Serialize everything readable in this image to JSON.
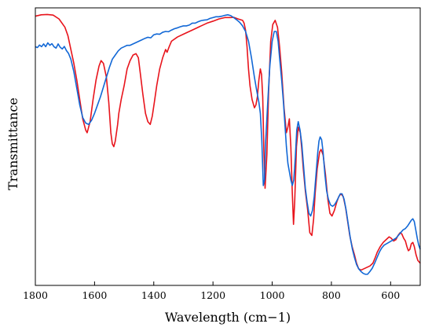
{
  "chart_data": {
    "type": "line",
    "xlabel": "Wavelength (cm−1)",
    "ylabel": "Transmittance",
    "xlim": [
      1800,
      500
    ],
    "ylim": [
      0,
      100
    ],
    "x_reversed": true,
    "grid": false,
    "legend": "none",
    "x_ticks": [
      1800,
      1600,
      1400,
      1200,
      1000,
      800,
      600
    ],
    "y_ticks_shown": false,
    "series": [
      {
        "color": "#e8141c",
        "points": [
          [
            1800,
            97
          ],
          [
            1780,
            97.5
          ],
          [
            1760,
            97.6
          ],
          [
            1740,
            97.4
          ],
          [
            1720,
            96
          ],
          [
            1700,
            93
          ],
          [
            1690,
            90
          ],
          [
            1680,
            85
          ],
          [
            1670,
            80
          ],
          [
            1660,
            74
          ],
          [
            1650,
            67
          ],
          [
            1640,
            60
          ],
          [
            1630,
            56
          ],
          [
            1625,
            55
          ],
          [
            1615,
            59
          ],
          [
            1605,
            67
          ],
          [
            1595,
            74
          ],
          [
            1585,
            79
          ],
          [
            1578,
            81
          ],
          [
            1570,
            80
          ],
          [
            1560,
            75
          ],
          [
            1552,
            66
          ],
          [
            1545,
            55
          ],
          [
            1540,
            51
          ],
          [
            1535,
            50
          ],
          [
            1530,
            52
          ],
          [
            1522,
            58
          ],
          [
            1518,
            62
          ],
          [
            1510,
            67
          ],
          [
            1500,
            72
          ],
          [
            1490,
            78
          ],
          [
            1480,
            81
          ],
          [
            1470,
            83
          ],
          [
            1460,
            83.5
          ],
          [
            1452,
            82
          ],
          [
            1445,
            76
          ],
          [
            1437,
            69
          ],
          [
            1428,
            62
          ],
          [
            1420,
            59
          ],
          [
            1412,
            58
          ],
          [
            1405,
            61
          ],
          [
            1398,
            66
          ],
          [
            1390,
            72
          ],
          [
            1380,
            78
          ],
          [
            1370,
            82
          ],
          [
            1360,
            85
          ],
          [
            1355,
            84
          ],
          [
            1348,
            86
          ],
          [
            1340,
            88
          ],
          [
            1320,
            89.5
          ],
          [
            1300,
            90.5
          ],
          [
            1280,
            91.5
          ],
          [
            1260,
            92.5
          ],
          [
            1240,
            93.5
          ],
          [
            1220,
            94.5
          ],
          [
            1200,
            95.2
          ],
          [
            1180,
            96
          ],
          [
            1160,
            96.5
          ],
          [
            1150,
            96.5
          ],
          [
            1140,
            96.5
          ],
          [
            1130,
            96.6
          ],
          [
            1115,
            96
          ],
          [
            1100,
            95.5
          ],
          [
            1095,
            94.5
          ],
          [
            1090,
            92
          ],
          [
            1085,
            86
          ],
          [
            1080,
            78
          ],
          [
            1075,
            72
          ],
          [
            1068,
            67
          ],
          [
            1060,
            64
          ],
          [
            1055,
            65
          ],
          [
            1050,
            68
          ],
          [
            1045,
            74
          ],
          [
            1040,
            78
          ],
          [
            1036,
            76
          ],
          [
            1032,
            68
          ],
          [
            1028,
            48
          ],
          [
            1024,
            35
          ],
          [
            1018,
            47
          ],
          [
            1012,
            70
          ],
          [
            1005,
            88
          ],
          [
            998,
            94
          ],
          [
            990,
            95.5
          ],
          [
            982,
            93
          ],
          [
            975,
            86
          ],
          [
            968,
            77
          ],
          [
            960,
            64
          ],
          [
            952,
            55
          ],
          [
            947,
            57
          ],
          [
            942,
            60
          ],
          [
            937,
            50
          ],
          [
            932,
            33
          ],
          [
            928,
            22
          ],
          [
            924,
            30
          ],
          [
            918,
            50
          ],
          [
            912,
            57
          ],
          [
            905,
            55
          ],
          [
            900,
            49
          ],
          [
            895,
            42
          ],
          [
            888,
            34
          ],
          [
            880,
            27
          ],
          [
            873,
            19
          ],
          [
            866,
            18
          ],
          [
            860,
            24
          ],
          [
            855,
            33
          ],
          [
            848,
            42
          ],
          [
            840,
            48
          ],
          [
            835,
            49
          ],
          [
            828,
            47
          ],
          [
            820,
            40
          ],
          [
            812,
            31
          ],
          [
            805,
            26
          ],
          [
            798,
            25
          ],
          [
            790,
            27
          ],
          [
            782,
            30
          ],
          [
            775,
            32
          ],
          [
            768,
            33
          ],
          [
            760,
            32
          ],
          [
            752,
            28
          ],
          [
            745,
            23
          ],
          [
            738,
            18
          ],
          [
            730,
            14
          ],
          [
            722,
            11
          ],
          [
            715,
            8
          ],
          [
            708,
            6
          ],
          [
            700,
            5.5
          ],
          [
            690,
            6
          ],
          [
            680,
            6.5
          ],
          [
            670,
            7
          ],
          [
            660,
            8
          ],
          [
            652,
            10
          ],
          [
            645,
            12
          ],
          [
            635,
            14
          ],
          [
            625,
            15.5
          ],
          [
            615,
            16.5
          ],
          [
            605,
            17.5
          ],
          [
            598,
            17
          ],
          [
            590,
            16
          ],
          [
            582,
            16.5
          ],
          [
            575,
            18
          ],
          [
            568,
            19
          ],
          [
            562,
            18.5
          ],
          [
            556,
            17
          ],
          [
            550,
            16
          ],
          [
            545,
            14
          ],
          [
            540,
            12.5
          ],
          [
            535,
            13
          ],
          [
            530,
            15
          ],
          [
            525,
            15.5
          ],
          [
            520,
            14
          ],
          [
            514,
            11
          ],
          [
            508,
            9
          ],
          [
            504,
            8.5
          ],
          [
            500,
            8
          ]
        ]
      },
      {
        "color": "#1268d6",
        "points": [
          [
            1800,
            86
          ],
          [
            1793,
            85.7
          ],
          [
            1786,
            86.6
          ],
          [
            1779,
            86
          ],
          [
            1772,
            87
          ],
          [
            1765,
            86
          ],
          [
            1758,
            87.4
          ],
          [
            1751,
            86.5
          ],
          [
            1744,
            87.1
          ],
          [
            1737,
            86
          ],
          [
            1730,
            85.5
          ],
          [
            1723,
            87
          ],
          [
            1716,
            85.8
          ],
          [
            1709,
            85.2
          ],
          [
            1702,
            86.1
          ],
          [
            1695,
            84.6
          ],
          [
            1688,
            83.6
          ],
          [
            1680,
            81.5
          ],
          [
            1670,
            77
          ],
          [
            1660,
            71
          ],
          [
            1650,
            65
          ],
          [
            1640,
            60.5
          ],
          [
            1630,
            58.5
          ],
          [
            1620,
            58
          ],
          [
            1610,
            59.5
          ],
          [
            1600,
            62
          ],
          [
            1590,
            65
          ],
          [
            1580,
            68
          ],
          [
            1570,
            71.5
          ],
          [
            1560,
            75
          ],
          [
            1550,
            78.5
          ],
          [
            1540,
            81.5
          ],
          [
            1530,
            83
          ],
          [
            1520,
            84.5
          ],
          [
            1510,
            85.5
          ],
          [
            1500,
            86
          ],
          [
            1490,
            86.5
          ],
          [
            1480,
            86.5
          ],
          [
            1470,
            87
          ],
          [
            1460,
            87.5
          ],
          [
            1450,
            88
          ],
          [
            1440,
            88.5
          ],
          [
            1430,
            89
          ],
          [
            1420,
            89.4
          ],
          [
            1410,
            89.2
          ],
          [
            1400,
            90.3
          ],
          [
            1390,
            90.6
          ],
          [
            1380,
            90.5
          ],
          [
            1370,
            91.2
          ],
          [
            1360,
            91.5
          ],
          [
            1350,
            91.4
          ],
          [
            1340,
            92
          ],
          [
            1330,
            92.5
          ],
          [
            1320,
            92.8
          ],
          [
            1310,
            93.2
          ],
          [
            1300,
            93.5
          ],
          [
            1290,
            93.5
          ],
          [
            1280,
            93.8
          ],
          [
            1270,
            94.5
          ],
          [
            1260,
            94.5
          ],
          [
            1250,
            95
          ],
          [
            1240,
            95.4
          ],
          [
            1230,
            95.6
          ],
          [
            1220,
            95.7
          ],
          [
            1210,
            96.2
          ],
          [
            1200,
            96.5
          ],
          [
            1190,
            96.8
          ],
          [
            1180,
            96.8
          ],
          [
            1170,
            97
          ],
          [
            1160,
            97.3
          ],
          [
            1150,
            97.5
          ],
          [
            1140,
            97.2
          ],
          [
            1130,
            96.5
          ],
          [
            1120,
            95.7
          ],
          [
            1110,
            94.8
          ],
          [
            1100,
            93.5
          ],
          [
            1090,
            91.5
          ],
          [
            1080,
            88
          ],
          [
            1070,
            82
          ],
          [
            1060,
            75
          ],
          [
            1052,
            70
          ],
          [
            1045,
            66
          ],
          [
            1040,
            62
          ],
          [
            1035,
            52
          ],
          [
            1030,
            36
          ],
          [
            1026,
            38
          ],
          [
            1022,
            52
          ],
          [
            1015,
            66
          ],
          [
            1008,
            79
          ],
          [
            1000,
            88
          ],
          [
            993,
            91.5
          ],
          [
            986,
            91.5
          ],
          [
            980,
            88
          ],
          [
            975,
            82
          ],
          [
            968,
            74
          ],
          [
            962,
            66
          ],
          [
            957,
            58
          ],
          [
            952,
            50
          ],
          [
            947,
            44
          ],
          [
            942,
            41
          ],
          [
            937,
            38
          ],
          [
            932,
            36
          ],
          [
            927,
            38
          ],
          [
            922,
            46
          ],
          [
            917,
            56
          ],
          [
            912,
            59
          ],
          [
            906,
            56
          ],
          [
            900,
            51
          ],
          [
            894,
            43
          ],
          [
            888,
            35
          ],
          [
            882,
            30
          ],
          [
            876,
            26
          ],
          [
            870,
            25
          ],
          [
            864,
            27
          ],
          [
            858,
            32
          ],
          [
            852,
            40
          ],
          [
            846,
            48
          ],
          [
            842,
            52
          ],
          [
            838,
            53.5
          ],
          [
            833,
            52.5
          ],
          [
            828,
            48
          ],
          [
            822,
            40
          ],
          [
            816,
            34
          ],
          [
            810,
            31
          ],
          [
            803,
            29
          ],
          [
            796,
            28.5
          ],
          [
            790,
            29
          ],
          [
            784,
            30
          ],
          [
            777,
            31.5
          ],
          [
            770,
            33
          ],
          [
            764,
            33
          ],
          [
            757,
            31
          ],
          [
            750,
            27
          ],
          [
            743,
            22
          ],
          [
            736,
            17
          ],
          [
            729,
            13
          ],
          [
            722,
            10
          ],
          [
            715,
            7.5
          ],
          [
            708,
            6
          ],
          [
            700,
            5
          ],
          [
            692,
            4.3
          ],
          [
            685,
            4
          ],
          [
            678,
            4
          ],
          [
            670,
            5
          ],
          [
            662,
            6.2
          ],
          [
            654,
            8
          ],
          [
            646,
            10
          ],
          [
            638,
            12
          ],
          [
            630,
            13.5
          ],
          [
            622,
            14.5
          ],
          [
            614,
            15
          ],
          [
            606,
            15.5
          ],
          [
            598,
            16
          ],
          [
            590,
            16.5
          ],
          [
            582,
            17
          ],
          [
            574,
            18
          ],
          [
            566,
            19
          ],
          [
            558,
            20
          ],
          [
            550,
            20.5
          ],
          [
            542,
            21.5
          ],
          [
            536,
            22.5
          ],
          [
            530,
            23.5
          ],
          [
            525,
            24
          ],
          [
            520,
            23
          ],
          [
            515,
            20
          ],
          [
            510,
            17
          ],
          [
            505,
            14.5
          ],
          [
            500,
            13
          ]
        ]
      }
    ]
  }
}
